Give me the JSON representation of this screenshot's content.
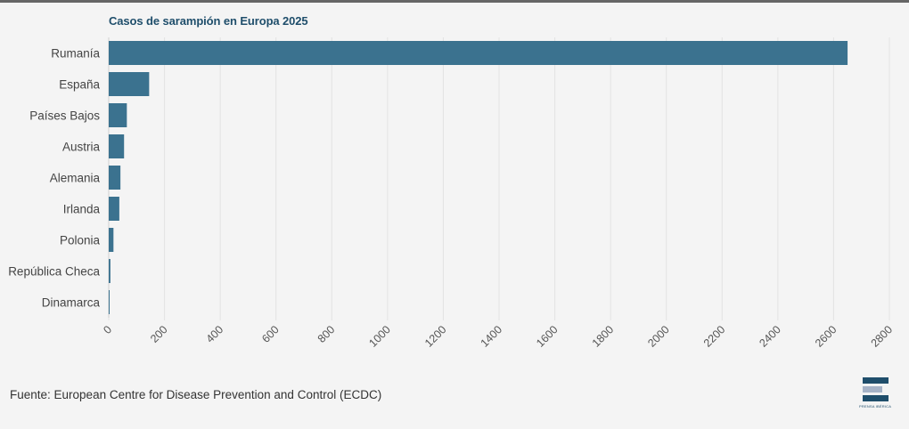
{
  "chart_data": {
    "type": "bar",
    "orientation": "horizontal",
    "title": "Casos de sarampión en Europa 2025",
    "categories": [
      "Rumanía",
      "España",
      "Países Bajos",
      "Austria",
      "Alemania",
      "Irlanda",
      "Polonia",
      "República Checa",
      "Dinamarca"
    ],
    "values": [
      2650,
      145,
      65,
      55,
      42,
      38,
      17,
      6,
      2
    ],
    "xlim": [
      0,
      2800
    ],
    "xticks": [
      0,
      200,
      400,
      600,
      800,
      1000,
      1200,
      1400,
      1600,
      1800,
      2000,
      2200,
      2400,
      2600,
      2800
    ],
    "xlabel": "",
    "ylabel": "",
    "grid": "vertical",
    "bar_color": "#3b728f"
  },
  "source": "Fuente: European Centre for Disease Prevention and Control (ECDC)",
  "logo": {
    "text": "PRENSA IBÉRICA",
    "colors": [
      "#1f4e6b",
      "#a6b3c7"
    ]
  }
}
